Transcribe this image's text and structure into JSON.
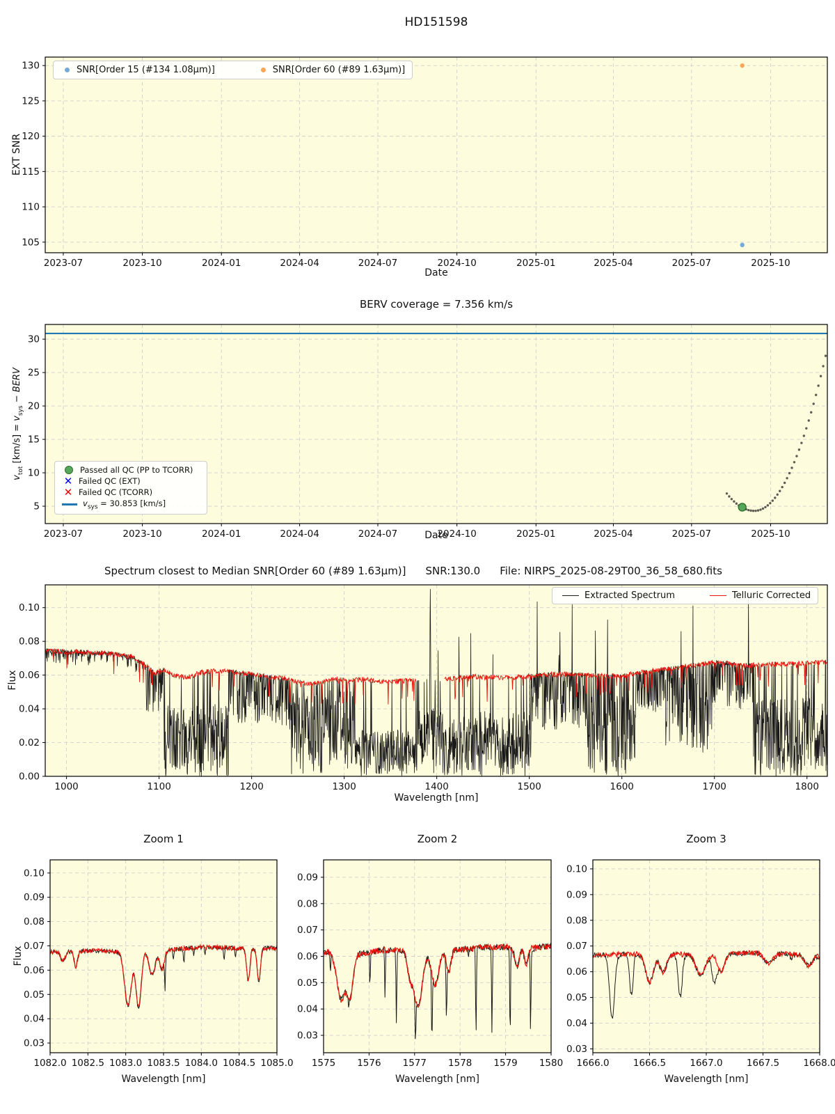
{
  "figure": {
    "title": "HD151598",
    "bg": "#ffffff",
    "panel_bg": "#fdfcdc",
    "grid_color": "#cfcfcf",
    "spine_color": "#000000"
  },
  "colors": {
    "scatter_blue": "#74a9d8",
    "scatter_orange": "#f9a65a",
    "green_fill": "#55a85a",
    "green_edge": "#2f6f2f",
    "dotted_gray": "#5c5c55",
    "vsys_blue": "#1f77b4",
    "failed_ext_blue": "#0000ee",
    "failed_tcorr_red": "#ee0000",
    "spec_black": "#1a1a1a",
    "spec_red": "#e8140c"
  },
  "chart_data": [
    {
      "id": "ext-snr",
      "type": "scatter",
      "title": "HD151598",
      "xlabel": "Date",
      "ylabel": "EXT SNR",
      "xlim": [
        "2023-06-10",
        "2025-12-06"
      ],
      "ylim": [
        103.5,
        131.2
      ],
      "xticks": [
        {
          "v": "2023-07-01",
          "label": "2023-07"
        },
        {
          "v": "2023-10-01",
          "label": "2023-10"
        },
        {
          "v": "2024-01-01",
          "label": "2024-01"
        },
        {
          "v": "2024-04-01",
          "label": "2024-04"
        },
        {
          "v": "2024-07-01",
          "label": "2024-07"
        },
        {
          "v": "2024-10-01",
          "label": "2024-10"
        },
        {
          "v": "2025-01-01",
          "label": "2025-01"
        },
        {
          "v": "2025-04-01",
          "label": "2025-04"
        },
        {
          "v": "2025-07-01",
          "label": "2025-07"
        },
        {
          "v": "2025-10-01",
          "label": "2025-10"
        }
      ],
      "yticks": [
        {
          "v": 105,
          "label": "105"
        },
        {
          "v": 110,
          "label": "110"
        },
        {
          "v": 115,
          "label": "115"
        },
        {
          "v": 120,
          "label": "120"
        },
        {
          "v": 125,
          "label": "125"
        },
        {
          "v": 130,
          "label": "130"
        }
      ],
      "series": [
        {
          "name": "SNR[Order 15 (#134 1.08µm)]",
          "color": "#74a9d8",
          "points": [
            [
              "2025-08-29",
              104.6
            ]
          ]
        },
        {
          "name": "SNR[Order 60 (#89 1.63µm)]",
          "color": "#f9a65a",
          "points": [
            [
              "2025-08-29",
              130.0
            ]
          ]
        }
      ]
    },
    {
      "id": "berv",
      "type": "mixed",
      "title": "BERV coverage = 7.356 km/s",
      "xlabel": "Date",
      "ylabel_parts": {
        "v1": "v",
        "s1": "tot",
        "m": " [km/s] = ",
        "v2": "v",
        "s2": "sys",
        "r": " − ",
        "b": "BERV"
      },
      "xlim": [
        "2023-06-10",
        "2025-12-06"
      ],
      "ylim": [
        2.4,
        32.2
      ],
      "xticks": [
        {
          "v": "2023-07-01",
          "label": "2023-07"
        },
        {
          "v": "2023-10-01",
          "label": "2023-10"
        },
        {
          "v": "2024-01-01",
          "label": "2024-01"
        },
        {
          "v": "2024-04-01",
          "label": "2024-04"
        },
        {
          "v": "2024-07-01",
          "label": "2024-07"
        },
        {
          "v": "2024-10-01",
          "label": "2024-10"
        },
        {
          "v": "2025-01-01",
          "label": "2025-01"
        },
        {
          "v": "2025-04-01",
          "label": "2025-04"
        },
        {
          "v": "2025-07-01",
          "label": "2025-07"
        },
        {
          "v": "2025-10-01",
          "label": "2025-10"
        }
      ],
      "yticks": [
        {
          "v": 5,
          "label": "5"
        },
        {
          "v": 10,
          "label": "10"
        },
        {
          "v": 15,
          "label": "15"
        },
        {
          "v": 20,
          "label": "20"
        },
        {
          "v": 25,
          "label": "25"
        },
        {
          "v": 30,
          "label": "30"
        }
      ],
      "hline": {
        "value": 30.853,
        "color": "#1f77b4"
      },
      "dotted_track": {
        "start": "2025-08-11",
        "min_date": "2025-09-12",
        "end": "2025-12-04",
        "y_start": 6.9,
        "y_min": 4.3,
        "y_end": 27.5,
        "n": 42,
        "color": "#5c5c55"
      },
      "passed_point": {
        "date": "2025-08-29",
        "value": 4.85
      },
      "legend": {
        "passed": "Passed all QC (PP to TCORR)",
        "failed_ext": "Failed QC (EXT)",
        "failed_tcorr": "Failed QC (TCORR)",
        "vsys_parts": {
          "v": "v",
          "s": "sys",
          "r": " = 30.853 [km/s]"
        },
        "x_glyph": "✕"
      }
    },
    {
      "id": "spectrum",
      "type": "line",
      "title": "Spectrum closest to Median SNR[Order 60 (#89 1.63µm)]",
      "title_snr": "SNR:130.0",
      "title_file": "File: NIRPS_2025-08-29T00_36_58_680.fits",
      "xlabel": "Wavelength [nm]",
      "ylabel": "Flux",
      "xlim": [
        977,
        1822
      ],
      "ylim": [
        0,
        0.1135
      ],
      "xticks": [
        {
          "v": 1000,
          "label": "1000"
        },
        {
          "v": 1100,
          "label": "1100"
        },
        {
          "v": 1200,
          "label": "1200"
        },
        {
          "v": 1300,
          "label": "1300"
        },
        {
          "v": 1400,
          "label": "1400"
        },
        {
          "v": 1500,
          "label": "1500"
        },
        {
          "v": 1600,
          "label": "1600"
        },
        {
          "v": 1700,
          "label": "1700"
        },
        {
          "v": 1800,
          "label": "1800"
        }
      ],
      "yticks": [
        {
          "v": 0.0,
          "label": "0.00"
        },
        {
          "v": 0.02,
          "label": "0.02"
        },
        {
          "v": 0.04,
          "label": "0.04"
        },
        {
          "v": 0.06,
          "label": "0.06"
        },
        {
          "v": 0.08,
          "label": "0.08"
        },
        {
          "v": 0.1,
          "label": "0.10"
        }
      ],
      "legend": {
        "extracted": "Extracted Spectrum",
        "telluric": "Telluric Corrected"
      },
      "envelope": [
        [
          977,
          0.0745
        ],
        [
          1000,
          0.074
        ],
        [
          1025,
          0.0735
        ],
        [
          1050,
          0.0725
        ],
        [
          1070,
          0.071
        ],
        [
          1085,
          0.066
        ],
        [
          1095,
          0.061
        ],
        [
          1105,
          0.0635
        ],
        [
          1115,
          0.06
        ],
        [
          1130,
          0.0585
        ],
        [
          1145,
          0.0615
        ],
        [
          1160,
          0.0625
        ],
        [
          1180,
          0.062
        ],
        [
          1200,
          0.0605
        ],
        [
          1220,
          0.059
        ],
        [
          1240,
          0.0575
        ],
        [
          1260,
          0.0545
        ],
        [
          1275,
          0.0555
        ],
        [
          1290,
          0.058
        ],
        [
          1305,
          0.0565
        ],
        [
          1320,
          0.0575
        ],
        [
          1340,
          0.056
        ],
        [
          1360,
          0.0565
        ],
        [
          1378,
          0.057
        ],
        [
          1408,
          0.057
        ],
        [
          1420,
          0.0585
        ],
        [
          1440,
          0.059
        ],
        [
          1460,
          0.0585
        ],
        [
          1480,
          0.0585
        ],
        [
          1500,
          0.0595
        ],
        [
          1520,
          0.0605
        ],
        [
          1540,
          0.0605
        ],
        [
          1560,
          0.06
        ],
        [
          1580,
          0.0595
        ],
        [
          1600,
          0.0595
        ],
        [
          1620,
          0.0615
        ],
        [
          1640,
          0.063
        ],
        [
          1660,
          0.0645
        ],
        [
          1680,
          0.066
        ],
        [
          1700,
          0.0675
        ],
        [
          1715,
          0.067
        ],
        [
          1730,
          0.0655
        ],
        [
          1745,
          0.066
        ],
        [
          1760,
          0.0665
        ],
        [
          1780,
          0.0665
        ],
        [
          1800,
          0.067
        ],
        [
          1822,
          0.068
        ]
      ],
      "red_series": {
        "n": 1700,
        "noise": 0.0015,
        "gap": [
          1378,
          1408
        ],
        "down_spikes": {
          "prob": 0.05,
          "dmin": 0.002,
          "dmax": 0.014
        }
      },
      "black_series": {
        "n": 2300,
        "noise": 0.0013,
        "bands": [
          [
            977,
            1085,
            0.3,
            0.0,
            0.1
          ],
          [
            1085,
            1105,
            0.5,
            0.0,
            0.4
          ],
          [
            1105,
            1175,
            0.93,
            0.3,
            1.0
          ],
          [
            1175,
            1240,
            0.55,
            0.03,
            0.5
          ],
          [
            1240,
            1312,
            0.85,
            0.1,
            1.0
          ],
          [
            1312,
            1378,
            0.96,
            0.5,
            1.0
          ],
          [
            1378,
            1408,
            0.9,
            0.3,
            1.0
          ],
          [
            1408,
            1502,
            0.93,
            0.35,
            1.0
          ],
          [
            1502,
            1562,
            0.55,
            0.05,
            0.55
          ],
          [
            1562,
            1615,
            0.8,
            0.15,
            1.0
          ],
          [
            1615,
            1645,
            0.45,
            0.0,
            0.4
          ],
          [
            1645,
            1698,
            0.55,
            0.05,
            0.8
          ],
          [
            1698,
            1742,
            0.45,
            0.0,
            0.4
          ],
          [
            1742,
            1822,
            0.9,
            0.3,
            1.0
          ]
        ],
        "up_spikes": {
          "x0": 1400,
          "x1": 1790,
          "prob": 0.012,
          "hmin": 0.008,
          "hmax": 0.045
        },
        "peak": {
          "x": 1393,
          "y": 0.112
        }
      }
    },
    {
      "id": "zoom1",
      "type": "line",
      "title": "Zoom 1",
      "xlabel": "Wavelength [nm]",
      "ylabel": "Flux",
      "xlim": [
        1082.0,
        1085.0
      ],
      "ylim": [
        0.026,
        0.1054
      ],
      "xticks": [
        {
          "v": 1082.0,
          "label": "1082.0"
        },
        {
          "v": 1082.5,
          "label": "1082.5"
        },
        {
          "v": 1083.0,
          "label": "1083.0"
        },
        {
          "v": 1083.5,
          "label": "1083.5"
        },
        {
          "v": 1084.0,
          "label": "1084.0"
        },
        {
          "v": 1084.5,
          "label": "1084.5"
        },
        {
          "v": 1085.0,
          "label": "1085.0"
        }
      ],
      "yticks": [
        {
          "v": 0.03,
          "label": "0.03"
        },
        {
          "v": 0.04,
          "label": "0.04"
        },
        {
          "v": 0.05,
          "label": "0.05"
        },
        {
          "v": 0.06,
          "label": "0.06"
        },
        {
          "v": 0.07,
          "label": "0.07"
        },
        {
          "v": 0.08,
          "label": "0.08"
        },
        {
          "v": 0.09,
          "label": "0.09"
        },
        {
          "v": 0.1,
          "label": "0.10"
        }
      ],
      "n": 380,
      "noise": 0.0009,
      "base": [
        [
          1082.0,
          0.0675
        ],
        [
          1082.6,
          0.068
        ],
        [
          1083.0,
          0.0675
        ],
        [
          1083.6,
          0.0685
        ],
        [
          1084.0,
          0.0695
        ],
        [
          1084.5,
          0.069
        ],
        [
          1085.0,
          0.069
        ]
      ],
      "shared_dips": [
        [
          1082.17,
          0.004,
          0.03
        ],
        [
          1082.34,
          0.0065,
          0.022
        ],
        [
          1083.03,
          0.022,
          0.045
        ],
        [
          1083.17,
          0.023,
          0.035
        ],
        [
          1083.35,
          0.01,
          0.04
        ],
        [
          1083.48,
          0.008,
          0.03
        ],
        [
          1084.62,
          0.0135,
          0.022
        ],
        [
          1084.76,
          0.0135,
          0.022
        ]
      ],
      "black_dips": [
        [
          1083.52,
          0.014,
          0.006
        ],
        [
          1083.63,
          0.005,
          0.006
        ],
        [
          1083.77,
          0.006,
          0.008
        ],
        [
          1083.9,
          0.004,
          0.006
        ],
        [
          1084.05,
          0.004,
          0.006
        ],
        [
          1084.3,
          0.005,
          0.007
        ],
        [
          1084.45,
          0.004,
          0.006
        ]
      ]
    },
    {
      "id": "zoom2",
      "type": "line",
      "title": "Zoom 2",
      "xlabel": "Wavelength [nm]",
      "ylabel": "",
      "xlim": [
        1575,
        1580
      ],
      "ylim": [
        0.0234,
        0.0966
      ],
      "xticks": [
        {
          "v": 1575,
          "label": "1575"
        },
        {
          "v": 1576,
          "label": "1576"
        },
        {
          "v": 1577,
          "label": "1577"
        },
        {
          "v": 1578,
          "label": "1578"
        },
        {
          "v": 1579,
          "label": "1579"
        },
        {
          "v": 1580,
          "label": "1580"
        }
      ],
      "yticks": [
        {
          "v": 0.03,
          "label": "0.03"
        },
        {
          "v": 0.04,
          "label": "0.04"
        },
        {
          "v": 0.05,
          "label": "0.05"
        },
        {
          "v": 0.06,
          "label": "0.06"
        },
        {
          "v": 0.07,
          "label": "0.07"
        },
        {
          "v": 0.08,
          "label": "0.08"
        },
        {
          "v": 0.09,
          "label": "0.09"
        }
      ],
      "n": 420,
      "noise": 0.0012,
      "base": [
        [
          1575,
          0.0615
        ],
        [
          1575.9,
          0.061
        ],
        [
          1576.3,
          0.0625
        ],
        [
          1577,
          0.062
        ],
        [
          1578,
          0.0625
        ],
        [
          1578.5,
          0.0635
        ],
        [
          1579,
          0.0635
        ],
        [
          1579.6,
          0.063
        ],
        [
          1580,
          0.064
        ]
      ],
      "shared_dips": [
        [
          1575.38,
          0.0175,
          0.09
        ],
        [
          1575.58,
          0.016,
          0.07
        ],
        [
          1576.9,
          0.009,
          0.06
        ],
        [
          1577.08,
          0.021,
          0.09
        ],
        [
          1577.45,
          0.013,
          0.08
        ],
        [
          1577.75,
          0.008,
          0.05
        ],
        [
          1579.25,
          0.007,
          0.05
        ],
        [
          1579.45,
          0.006,
          0.04
        ]
      ],
      "black_dips": [
        [
          1575.15,
          0.007,
          0.01
        ],
        [
          1575.55,
          0.004,
          0.008
        ],
        [
          1576.02,
          0.013,
          0.008
        ],
        [
          1576.35,
          0.019,
          0.008
        ],
        [
          1576.6,
          0.028,
          0.009
        ],
        [
          1577.02,
          0.018,
          0.009
        ],
        [
          1577.38,
          0.027,
          0.009
        ],
        [
          1577.7,
          0.0225,
          0.009
        ],
        [
          1578.18,
          0.004,
          0.006
        ],
        [
          1578.35,
          0.034,
          0.009
        ],
        [
          1578.7,
          0.033,
          0.009
        ],
        [
          1579.1,
          0.034,
          0.009
        ],
        [
          1579.55,
          0.0315,
          0.009
        ]
      ]
    },
    {
      "id": "zoom3",
      "type": "line",
      "title": "Zoom 3",
      "xlabel": "Wavelength [nm]",
      "ylabel": "",
      "xlim": [
        1666.0,
        1668.0
      ],
      "ylim": [
        0.0285,
        0.1035
      ],
      "xticks": [
        {
          "v": 1666.0,
          "label": "1666.0"
        },
        {
          "v": 1666.5,
          "label": "1666.5"
        },
        {
          "v": 1667.0,
          "label": "1667.0"
        },
        {
          "v": 1667.5,
          "label": "1667.5"
        },
        {
          "v": 1668.0,
          "label": "1668.0"
        }
      ],
      "yticks": [
        {
          "v": 0.03,
          "label": "0.03"
        },
        {
          "v": 0.04,
          "label": "0.04"
        },
        {
          "v": 0.05,
          "label": "0.05"
        },
        {
          "v": 0.06,
          "label": "0.06"
        },
        {
          "v": 0.07,
          "label": "0.07"
        },
        {
          "v": 0.08,
          "label": "0.08"
        },
        {
          "v": 0.09,
          "label": "0.09"
        },
        {
          "v": 0.1,
          "label": "0.10"
        }
      ],
      "n": 380,
      "noise": 0.001,
      "base": [
        [
          1666,
          0.0665
        ],
        [
          1666.5,
          0.067
        ],
        [
          1667,
          0.0665
        ],
        [
          1667.5,
          0.0675
        ],
        [
          1668,
          0.066
        ]
      ],
      "shared_dips": [
        [
          1666.5,
          0.011,
          0.035
        ],
        [
          1666.62,
          0.007,
          0.03
        ],
        [
          1666.95,
          0.008,
          0.04
        ],
        [
          1667.13,
          0.0065,
          0.03
        ],
        [
          1667.55,
          0.004,
          0.04
        ],
        [
          1667.9,
          0.004,
          0.03
        ]
      ],
      "black_dips": [
        [
          1666.17,
          0.0245,
          0.022
        ],
        [
          1666.34,
          0.016,
          0.015
        ],
        [
          1666.77,
          0.0165,
          0.018
        ],
        [
          1667.07,
          0.01,
          0.02
        ],
        [
          1667.75,
          0.002,
          0.01
        ]
      ]
    }
  ]
}
